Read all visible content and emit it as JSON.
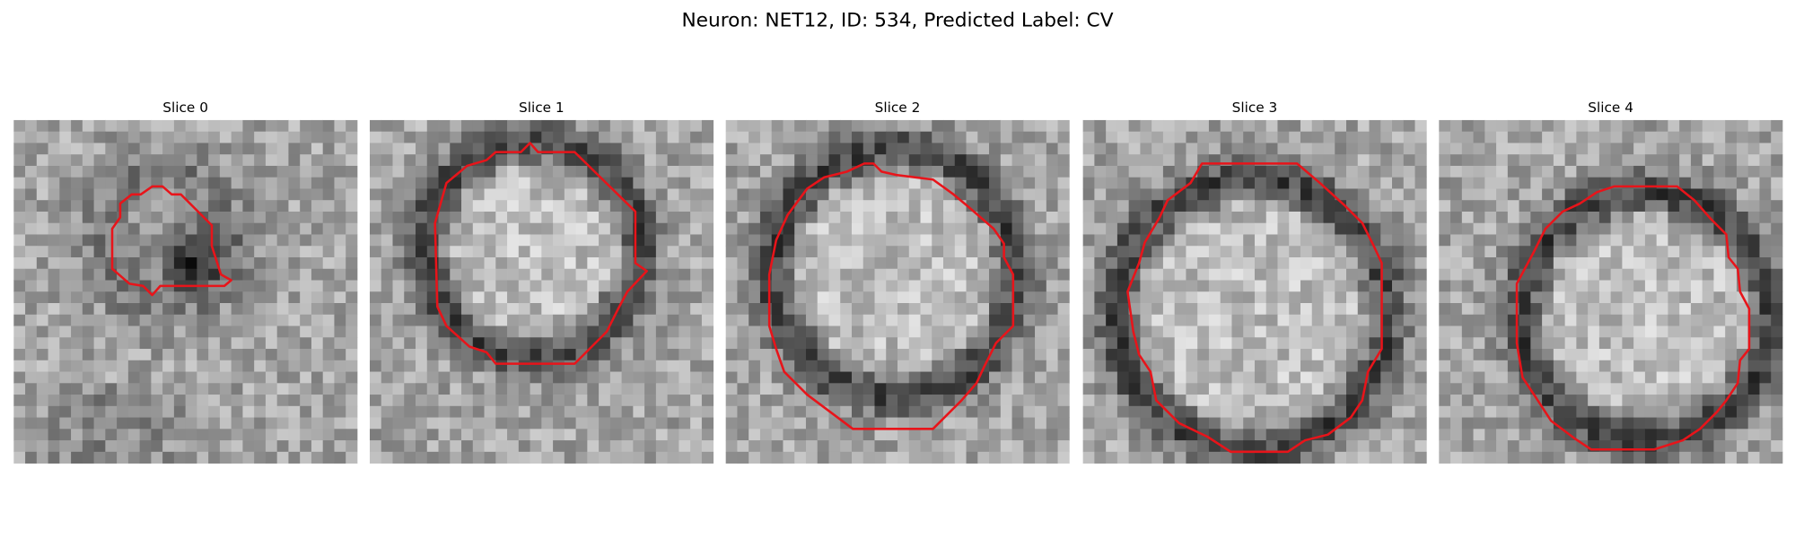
{
  "title": "Neuron: NET12, ID: 534, Predicted Label: CV",
  "panels": [
    {
      "title": "Slice 0"
    },
    {
      "title": "Slice 1"
    },
    {
      "title": "Slice 2"
    },
    {
      "title": "Slice 3"
    },
    {
      "title": "Slice 4"
    }
  ]
}
